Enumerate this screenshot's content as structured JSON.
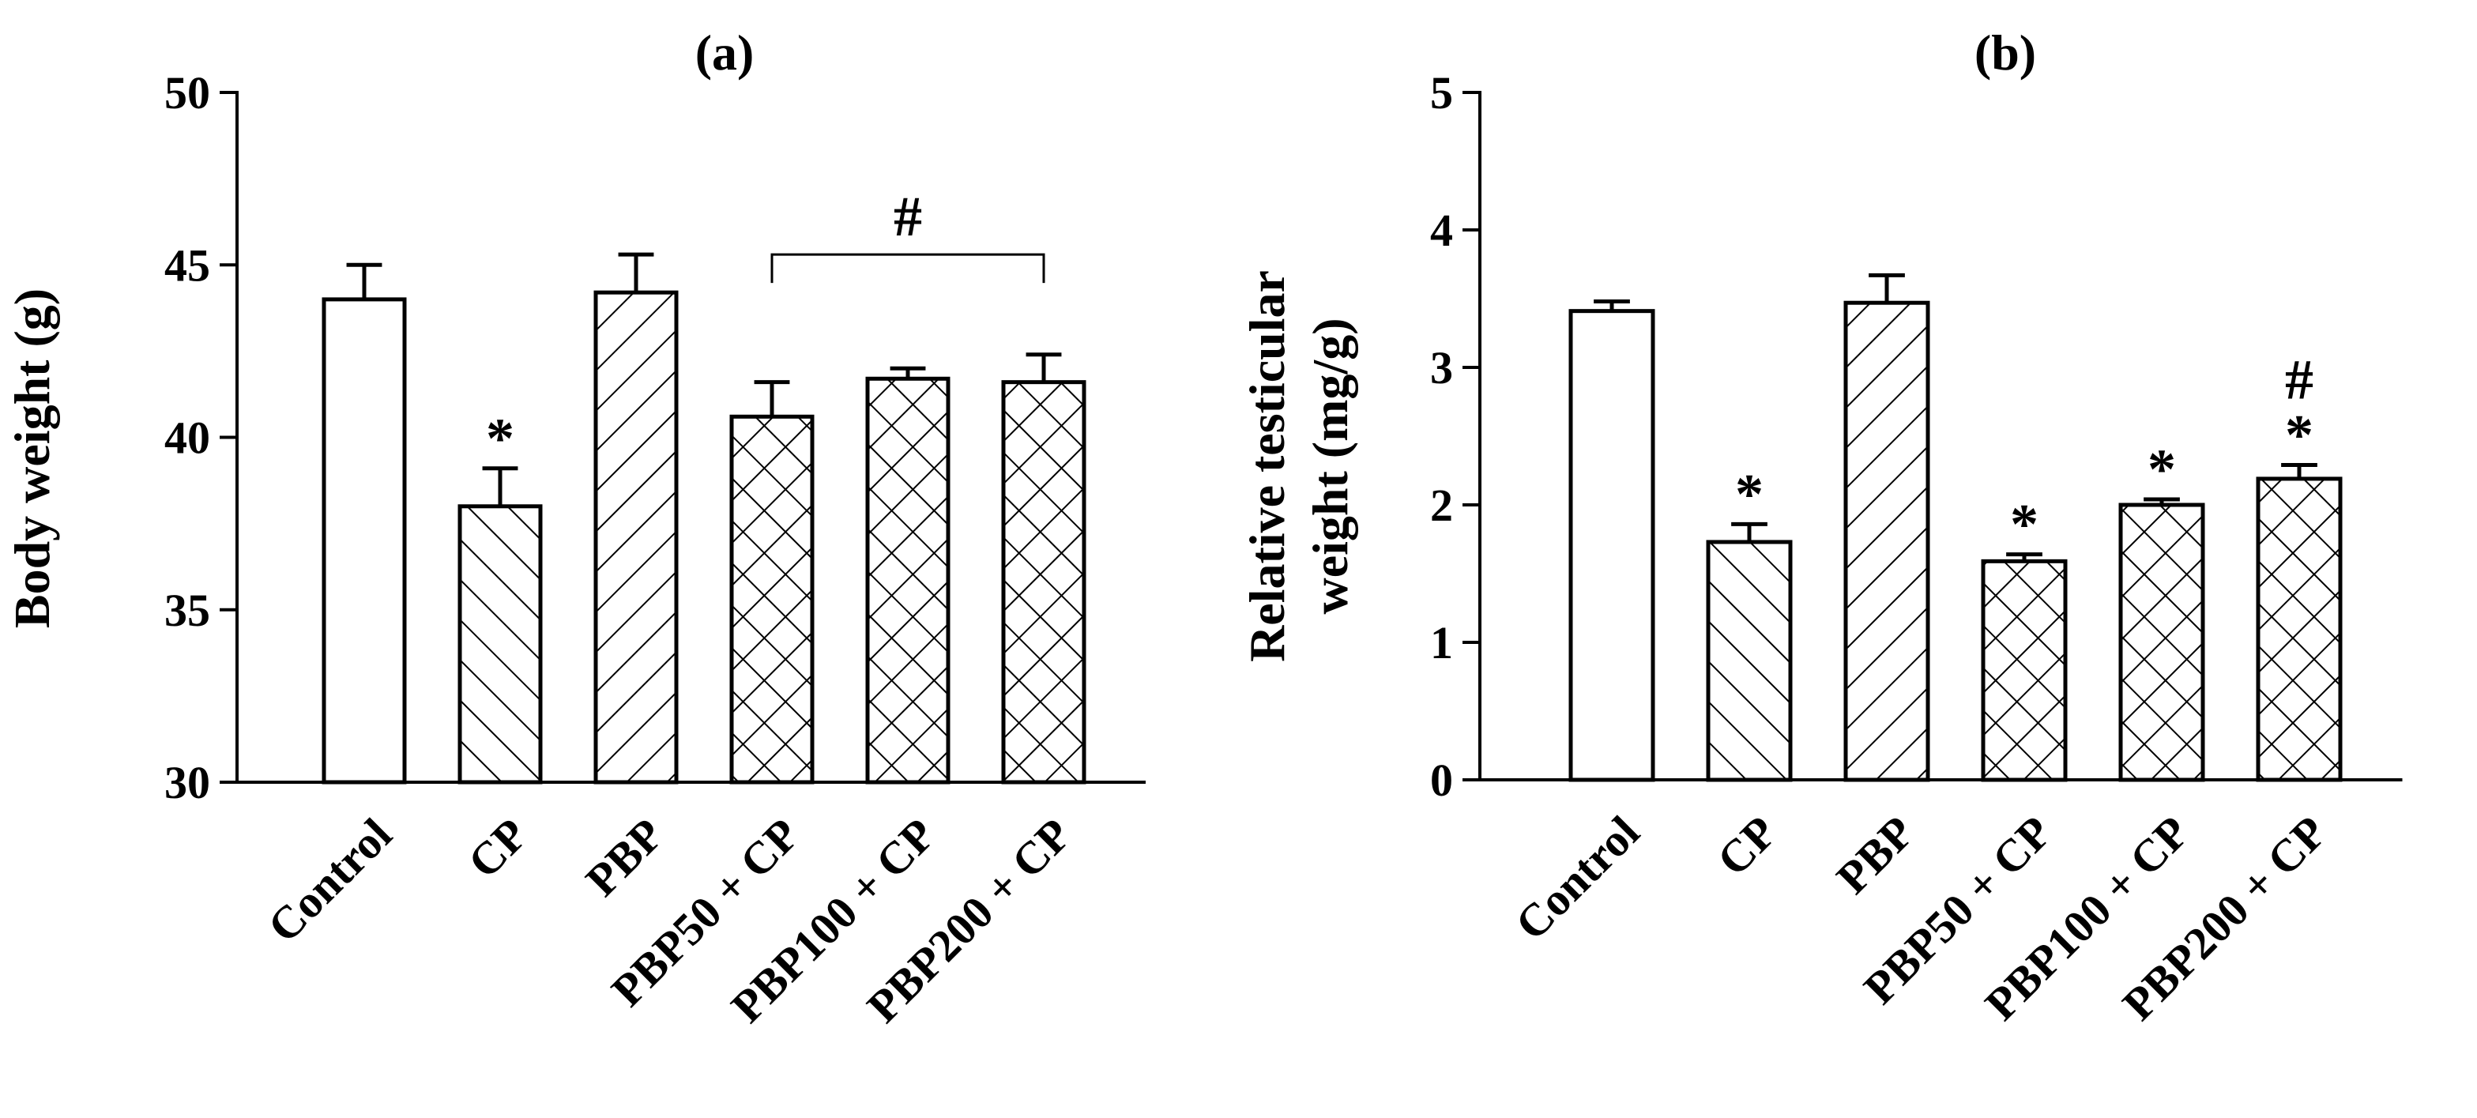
{
  "colors": {
    "ink": "#000000",
    "fill": "#ffffff"
  },
  "chart_data": [
    {
      "type": "bar",
      "title": "(a)",
      "xlabel": "",
      "ylabel": "Body weight (g)",
      "ylim": [
        30,
        50
      ],
      "yticks": [
        "30",
        "35",
        "40",
        "45",
        "50"
      ],
      "grid": false,
      "categories": [
        "Control",
        "CP",
        "PBP",
        "PBP50 + CP",
        "PBP100 + CP",
        "PBP200 + CP"
      ],
      "patterns": [
        "none",
        "backslash",
        "slash",
        "crosshatch",
        "crosshatch",
        "crosshatch"
      ],
      "values": [
        44.0,
        38.0,
        44.2,
        40.6,
        41.7,
        41.6
      ],
      "errors": [
        1.0,
        1.1,
        1.1,
        1.0,
        0.3,
        0.8
      ],
      "markers": [
        "",
        "*",
        "",
        "",
        "",
        ""
      ],
      "bracket": {
        "from": 3,
        "to": 5,
        "label": "#",
        "level": 45.3
      }
    },
    {
      "type": "bar",
      "title": "(b)",
      "xlabel": "",
      "ylabel": [
        "Relative testicular",
        "weight (mg/g)"
      ],
      "ylim": [
        0,
        5
      ],
      "yticks": [
        "0",
        "1",
        "2",
        "3",
        "4",
        "5"
      ],
      "grid": false,
      "categories": [
        "Control",
        "CP",
        "PBP",
        "PBP50 + CP",
        "PBP100 + CP",
        "PBP200 + CP"
      ],
      "patterns": [
        "none",
        "backslash",
        "slash",
        "crosshatch",
        "crosshatch",
        "crosshatch"
      ],
      "values": [
        3.41,
        1.73,
        3.47,
        1.59,
        2.0,
        2.19
      ],
      "errors": [
        0.07,
        0.13,
        0.2,
        0.05,
        0.04,
        0.1
      ],
      "markers": [
        "",
        "*",
        "",
        "*",
        "*",
        "*"
      ],
      "second_markers": [
        "",
        "",
        "",
        "",
        "",
        "#"
      ]
    }
  ]
}
